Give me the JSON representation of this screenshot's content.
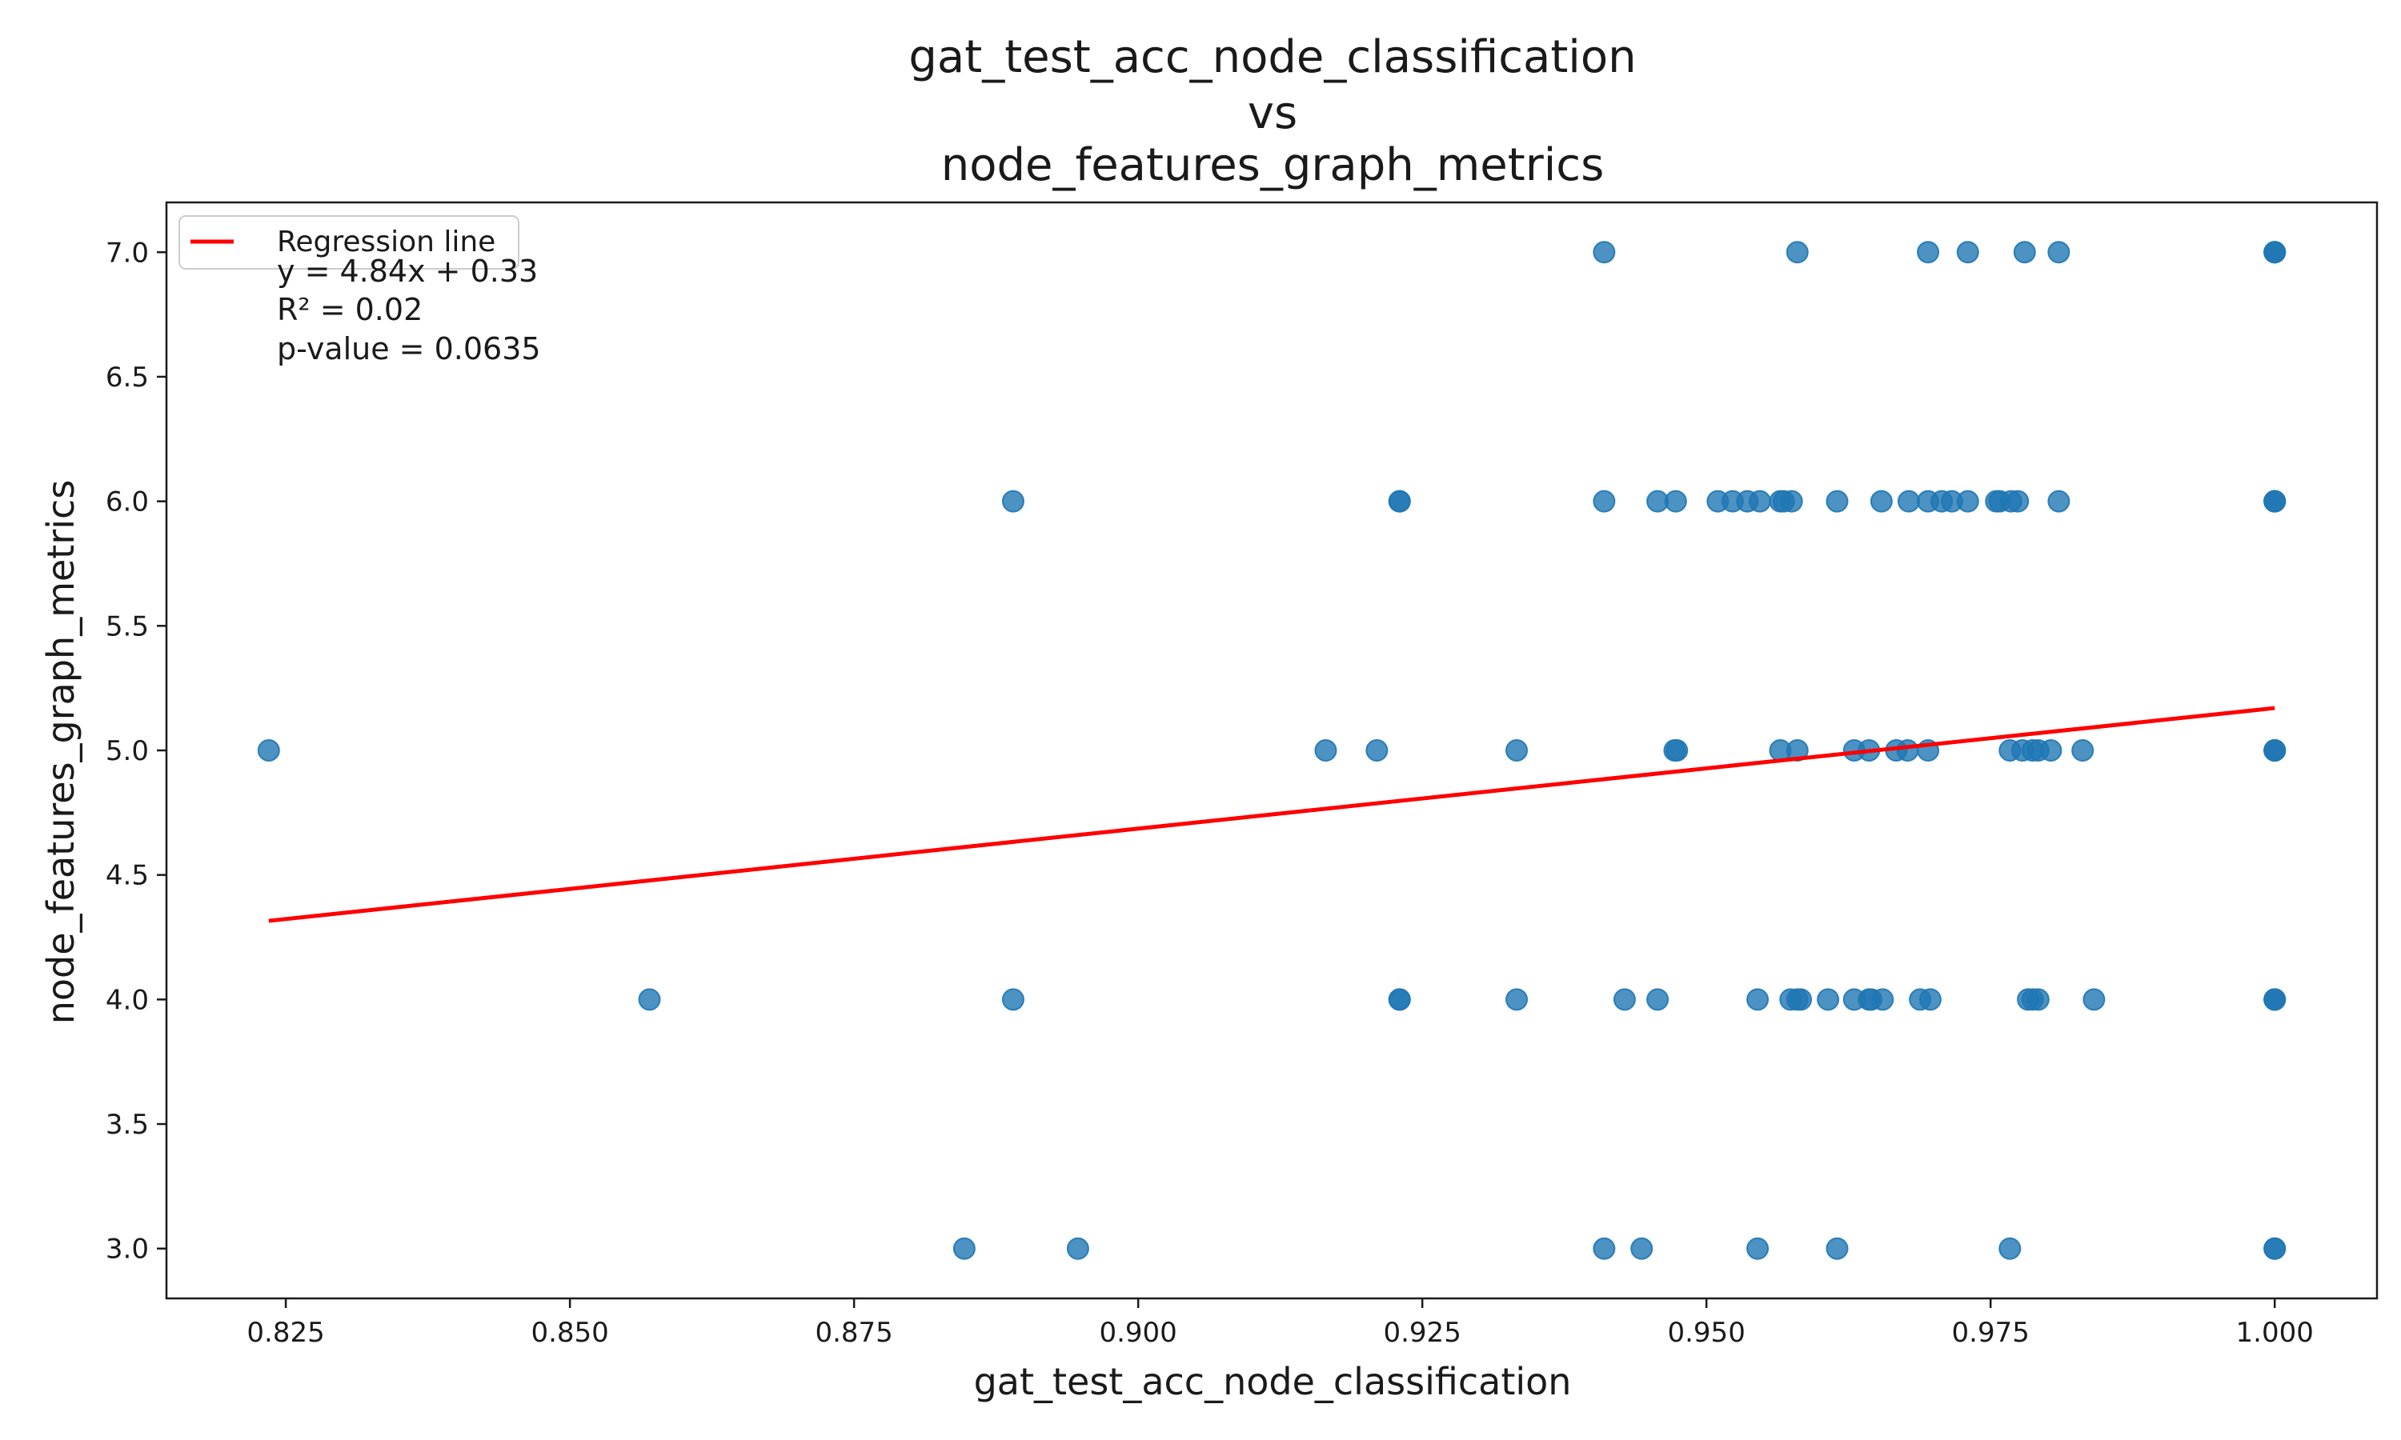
{
  "chart_data": {
    "type": "scatter",
    "title": [
      "gat_test_acc_node_classification",
      "vs",
      "node_features_graph_metrics"
    ],
    "xlabel": "gat_test_acc_node_classification",
    "ylabel": "node_features_graph_metrics",
    "xlim": [
      0.8145,
      1.009
    ],
    "ylim": [
      2.8,
      7.2
    ],
    "xticks": [
      "0.825",
      "0.850",
      "0.875",
      "0.900",
      "0.925",
      "0.950",
      "0.975",
      "1.000"
    ],
    "yticks": [
      "3.0",
      "3.5",
      "4.0",
      "4.5",
      "5.0",
      "5.5",
      "6.0",
      "6.5",
      "7.0"
    ],
    "grid": false,
    "legend": {
      "placement": "top-left",
      "entries": [
        "Regression line"
      ]
    },
    "regression": {
      "slope": 4.84,
      "intercept": 0.33,
      "x_start": 0.8235,
      "x_end": 1.0,
      "color": "#ff0000"
    },
    "annotations": [
      "y = 4.84x + 0.33",
      "R² = 0.02",
      "p-value = 0.0635"
    ],
    "point_color": "#1f77b4",
    "points": [
      [
        0.941,
        7.0
      ],
      [
        0.958,
        7.0
      ],
      [
        0.9695,
        7.0
      ],
      [
        0.973,
        7.0
      ],
      [
        0.978,
        7.0
      ],
      [
        0.981,
        7.0
      ],
      [
        1.0,
        7.0
      ],
      [
        1.0,
        7.0
      ],
      [
        1.0,
        7.0
      ],
      [
        0.889,
        6.0
      ],
      [
        0.923,
        6.0
      ],
      [
        0.923,
        6.0
      ],
      [
        0.941,
        6.0
      ],
      [
        0.9457,
        6.0
      ],
      [
        0.9473,
        6.0
      ],
      [
        0.951,
        6.0
      ],
      [
        0.9523,
        6.0
      ],
      [
        0.9536,
        6.0
      ],
      [
        0.9547,
        6.0
      ],
      [
        0.9565,
        6.0
      ],
      [
        0.9568,
        6.0
      ],
      [
        0.9575,
        6.0
      ],
      [
        0.9615,
        6.0
      ],
      [
        0.9654,
        6.0
      ],
      [
        0.9678,
        6.0
      ],
      [
        0.9695,
        6.0
      ],
      [
        0.9707,
        6.0
      ],
      [
        0.9716,
        6.0
      ],
      [
        0.973,
        6.0
      ],
      [
        0.9755,
        6.0
      ],
      [
        0.9758,
        6.0
      ],
      [
        0.9768,
        6.0
      ],
      [
        0.9774,
        6.0
      ],
      [
        0.981,
        6.0
      ],
      [
        1.0,
        6.0
      ],
      [
        1.0,
        6.0
      ],
      [
        1.0,
        6.0
      ],
      [
        0.8235,
        5.0
      ],
      [
        0.9165,
        5.0
      ],
      [
        0.921,
        5.0
      ],
      [
        0.9333,
        5.0
      ],
      [
        0.9472,
        5.0
      ],
      [
        0.9474,
        5.0
      ],
      [
        0.9565,
        5.0
      ],
      [
        0.958,
        5.0
      ],
      [
        0.963,
        5.0
      ],
      [
        0.9643,
        5.0
      ],
      [
        0.9667,
        5.0
      ],
      [
        0.9677,
        5.0
      ],
      [
        0.9695,
        5.0
      ],
      [
        0.9767,
        5.0
      ],
      [
        0.9778,
        5.0
      ],
      [
        0.9787,
        5.0
      ],
      [
        0.9792,
        5.0
      ],
      [
        0.9803,
        5.0
      ],
      [
        0.9831,
        5.0
      ],
      [
        1.0,
        5.0
      ],
      [
        1.0,
        5.0
      ],
      [
        1.0,
        5.0
      ],
      [
        0.857,
        4.0
      ],
      [
        0.889,
        4.0
      ],
      [
        0.923,
        4.0
      ],
      [
        0.923,
        4.0
      ],
      [
        0.9333,
        4.0
      ],
      [
        0.9428,
        4.0
      ],
      [
        0.9457,
        4.0
      ],
      [
        0.9545,
        4.0
      ],
      [
        0.9574,
        4.0
      ],
      [
        0.958,
        4.0
      ],
      [
        0.9583,
        4.0
      ],
      [
        0.9607,
        4.0
      ],
      [
        0.963,
        4.0
      ],
      [
        0.9643,
        4.0
      ],
      [
        0.9645,
        4.0
      ],
      [
        0.9655,
        4.0
      ],
      [
        0.9688,
        4.0
      ],
      [
        0.9697,
        4.0
      ],
      [
        0.9783,
        4.0
      ],
      [
        0.9787,
        4.0
      ],
      [
        0.9792,
        4.0
      ],
      [
        0.9841,
        4.0
      ],
      [
        1.0,
        4.0
      ],
      [
        1.0,
        4.0
      ],
      [
        1.0,
        4.0
      ],
      [
        0.8847,
        3.0
      ],
      [
        0.8947,
        3.0
      ],
      [
        0.941,
        3.0
      ],
      [
        0.9443,
        3.0
      ],
      [
        0.9545,
        3.0
      ],
      [
        0.9615,
        3.0
      ],
      [
        0.9767,
        3.0
      ],
      [
        1.0,
        3.0
      ],
      [
        1.0,
        3.0
      ]
    ]
  }
}
